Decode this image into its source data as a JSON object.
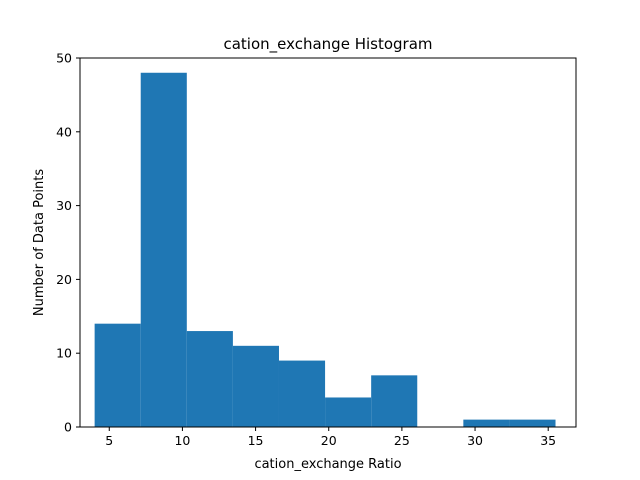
{
  "chart_data": {
    "type": "bar",
    "title": "cation_exchange Histogram",
    "xlabel": "cation_exchange Ratio",
    "ylabel": "Number of Data Points",
    "xlim": [
      3.0,
      36.9
    ],
    "ylim": [
      0,
      50
    ],
    "x_ticks": [
      5,
      10,
      15,
      20,
      25,
      30,
      35
    ],
    "y_ticks": [
      0,
      10,
      20,
      30,
      40,
      50
    ],
    "bins": [
      {
        "start": 4.0,
        "end": 7.15,
        "count": 14
      },
      {
        "start": 7.15,
        "end": 10.3,
        "count": 48
      },
      {
        "start": 10.3,
        "end": 13.45,
        "count": 13
      },
      {
        "start": 13.45,
        "end": 16.6,
        "count": 11
      },
      {
        "start": 16.6,
        "end": 19.75,
        "count": 9
      },
      {
        "start": 19.75,
        "end": 22.9,
        "count": 4
      },
      {
        "start": 22.9,
        "end": 26.05,
        "count": 7
      },
      {
        "start": 26.05,
        "end": 29.2,
        "count": 0
      },
      {
        "start": 29.2,
        "end": 32.35,
        "count": 1
      },
      {
        "start": 32.35,
        "end": 35.5,
        "count": 1
      }
    ],
    "bar_color": "#1f77b4",
    "grid": false,
    "legend": "none"
  }
}
